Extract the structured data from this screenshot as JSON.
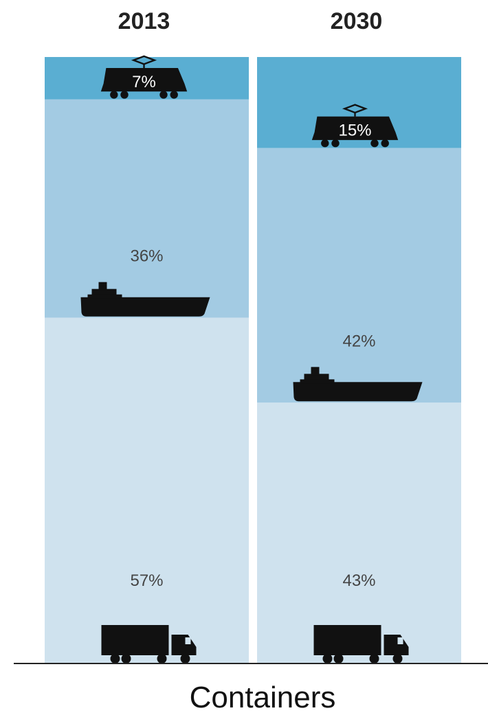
{
  "chart_data": {
    "type": "bar",
    "stacked": true,
    "normalized_to": 100,
    "unit": "%",
    "categories": [
      "2013",
      "2030"
    ],
    "series": [
      {
        "mode": "rail",
        "values": [
          7,
          15
        ],
        "labels": [
          "7%",
          "15%"
        ],
        "icon": "train-icon",
        "color": "#5aaed2"
      },
      {
        "mode": "waterway",
        "values": [
          36,
          42
        ],
        "labels": [
          "36%",
          "42%"
        ],
        "icon": "ship-icon",
        "color": "#a3cbe3"
      },
      {
        "mode": "road",
        "values": [
          57,
          43
        ],
        "labels": [
          "57%",
          "43%"
        ],
        "icon": "truck-icon",
        "color": "#cfe2ee"
      }
    ],
    "xlabel": "Containers",
    "ylim": [
      0,
      100
    ],
    "grid": false,
    "legend": "none"
  }
}
